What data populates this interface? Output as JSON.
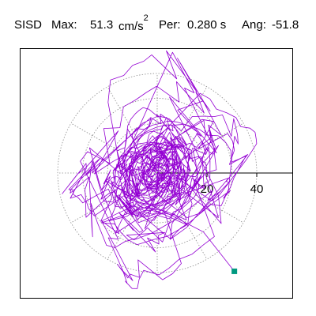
{
  "header": {
    "station": "SISD",
    "max_label": "Max:",
    "max_value": "51.3",
    "max_unit": "cm/s",
    "max_unit_sup": "2",
    "per_label": "Per:",
    "per_value": "0.280 s",
    "ang_label": "Ang:",
    "ang_value": "-51.8"
  },
  "chart_data": {
    "type": "line",
    "title": "",
    "xlabel": "",
    "ylabel": "",
    "coordinate_system": "polar",
    "radial_ticks": [
      20,
      40
    ],
    "radial_tick_labels": [
      "20",
      "40"
    ],
    "grid_rings": [
      10,
      20,
      30,
      40
    ],
    "grid_spokes_deg": [
      0,
      30,
      60,
      90,
      120,
      150,
      180,
      210,
      240,
      270,
      300,
      330
    ],
    "grid": true,
    "max_amplitude": 51.3,
    "orbit_turns": 34,
    "orbit_seed": 7,
    "end_point": {
      "x": 31.0,
      "y": -39.5
    },
    "orbit_color": "#9400d3",
    "marker_color": "#009980",
    "grid_color": "#8c8c8c"
  }
}
